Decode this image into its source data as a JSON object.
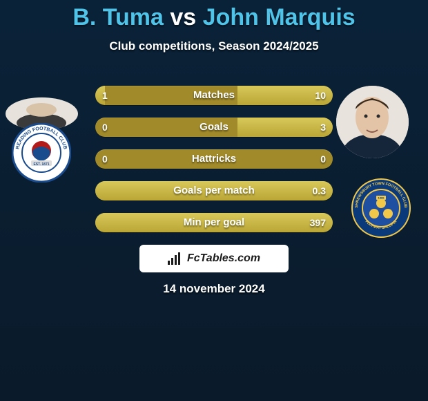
{
  "title": {
    "player1": "B. Tuma",
    "vs": "vs",
    "player2": "John Marquis",
    "fontsize": 34,
    "color_players": "#4fc3e8",
    "color_vs": "#ffffff"
  },
  "subtitle": {
    "text": "Club competitions, Season 2024/2025",
    "fontsize": 17
  },
  "stats": {
    "bar_bg": "#a08a2a",
    "bar_fill": "#c8b845",
    "label_color": "#ffffff",
    "label_fontsize": 15,
    "value_fontsize": 14,
    "rows": [
      {
        "label": "Matches",
        "left_val": "1",
        "right_val": "10",
        "left_pct": 4,
        "right_pct": 40
      },
      {
        "label": "Goals",
        "left_val": "0",
        "right_val": "3",
        "left_pct": 0,
        "right_pct": 40
      },
      {
        "label": "Hattricks",
        "left_val": "0",
        "right_val": "0",
        "left_pct": 0,
        "right_pct": 0
      },
      {
        "label": "Goals per match",
        "left_val": "",
        "right_val": "0.3",
        "left_pct": 0,
        "right_pct": 100
      },
      {
        "label": "Min per goal",
        "left_val": "",
        "right_val": "397",
        "left_pct": 0,
        "right_pct": 100
      }
    ]
  },
  "badges": {
    "left": {
      "ring_color": "#1a4b8c",
      "inner_color": "#ffffff",
      "accent": "#b31b1b",
      "text": "READING FOOTBALL CLUB",
      "sub": "EST. 1871"
    },
    "right": {
      "ring_color": "#0a3a7a",
      "inner_color": "#1f4fa0",
      "accent": "#f2c84b",
      "text": "SHREWSBURY TOWN FOOTBALL CLUB",
      "sub": "FLOREAT SALOPIA"
    }
  },
  "branding": {
    "text": "FcTables.com"
  },
  "date": {
    "text": "14 november 2024",
    "fontsize": 17
  },
  "background": "#0a1d30"
}
